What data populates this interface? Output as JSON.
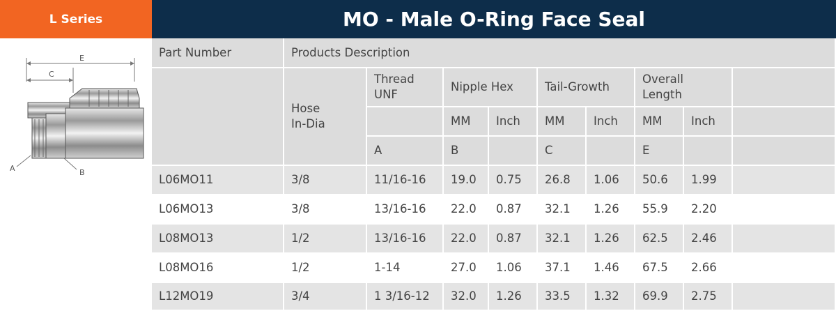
{
  "header": {
    "series_label": "L Series",
    "title": "MO - Male O-Ring Face Seal"
  },
  "diagram": {
    "dim_labels": {
      "e": "E",
      "c": "C",
      "a": "A",
      "b": "B"
    }
  },
  "table": {
    "header_part_number": "Part Number",
    "header_products_description": "Products Description",
    "header_hose_line1": "Hose",
    "header_hose_line2": "In-Dia",
    "header_thread_line1": "Thread",
    "header_thread_line2": "UNF",
    "header_nipple_hex": "Nipple Hex",
    "header_tail_growth": "Tail-Growth",
    "header_overall_line1": "Overall",
    "header_overall_line2": "Length",
    "unit_mm": "MM",
    "unit_inch": "Inch",
    "dim_a": "A",
    "dim_b": "B",
    "dim_c": "C",
    "dim_e": "E",
    "rows": [
      {
        "part": "L06MO11",
        "hose": "3/8",
        "thread": "11/16-16",
        "hex_mm": "19.0",
        "hex_in": "0.75",
        "tail_mm": "26.8",
        "tail_in": "1.06",
        "len_mm": "50.6",
        "len_in": "1.99"
      },
      {
        "part": "L06MO13",
        "hose": "3/8",
        "thread": "13/16-16",
        "hex_mm": "22.0",
        "hex_in": "0.87",
        "tail_mm": "32.1",
        "tail_in": "1.26",
        "len_mm": "55.9",
        "len_in": "2.20"
      },
      {
        "part": "L08MO13",
        "hose": "1/2",
        "thread": "13/16-16",
        "hex_mm": "22.0",
        "hex_in": "0.87",
        "tail_mm": "32.1",
        "tail_in": "1.26",
        "len_mm": "62.5",
        "len_in": "2.46"
      },
      {
        "part": "L08MO16",
        "hose": "1/2",
        "thread": "1-14",
        "hex_mm": "27.0",
        "hex_in": "1.06",
        "tail_mm": "37.1",
        "tail_in": "1.46",
        "len_mm": "67.5",
        "len_in": "2.66"
      },
      {
        "part": "L12MO19",
        "hose": "3/4",
        "thread": "1 3/16-12",
        "hex_mm": "32.0",
        "hex_in": "1.26",
        "tail_mm": "33.5",
        "tail_in": "1.32",
        "len_mm": "69.9",
        "len_in": "2.75"
      }
    ]
  }
}
